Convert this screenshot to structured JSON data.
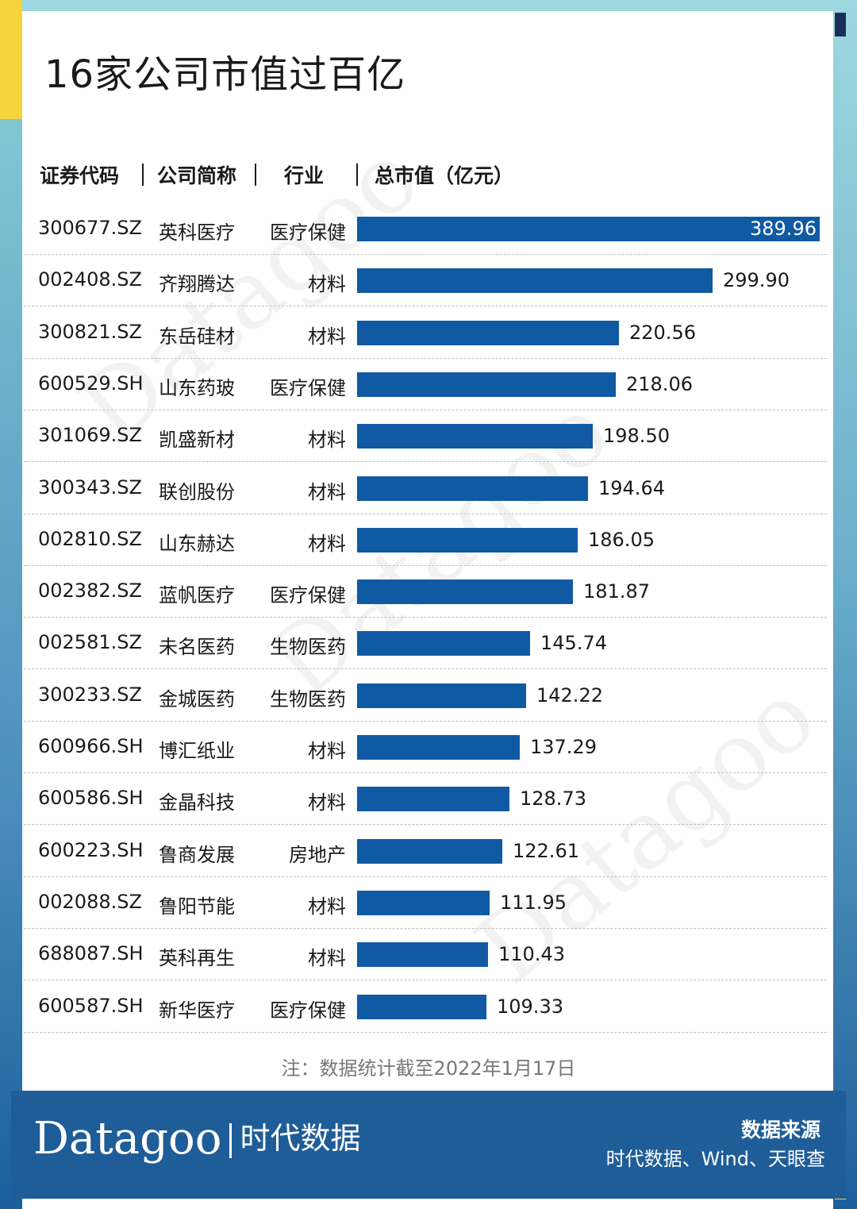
{
  "title": "16家公司市值过百亿",
  "headers": {
    "code": "证券代码",
    "name": "公司简称",
    "industry": "行业",
    "value": "总市值（亿元）"
  },
  "note": "注：数据统计截至2022年1月17日",
  "footer": {
    "logo_en": "Datagoo",
    "logo_cn": "时代数据",
    "source_title": "数据来源",
    "source_body": "时代数据、Wind、天眼查"
  },
  "colors": {
    "bar": "#0f5aa3",
    "footer": "#1f5d98",
    "accent_yellow": "#f5d33a",
    "accent_cyan": "#9ed8e0"
  },
  "chart_data": {
    "type": "bar",
    "orientation": "horizontal",
    "title": "16家公司市值过百亿",
    "xlabel": "总市值（亿元）",
    "ylabel": "",
    "grid": false,
    "rows": [
      {
        "code": "300677.SZ",
        "name": "英科医疗",
        "industry": "医疗保健",
        "value": 389.96
      },
      {
        "code": "002408.SZ",
        "name": "齐翔腾达",
        "industry": "材料",
        "value": 299.9
      },
      {
        "code": "300821.SZ",
        "name": "东岳硅材",
        "industry": "材料",
        "value": 220.56
      },
      {
        "code": "600529.SH",
        "name": "山东药玻",
        "industry": "医疗保健",
        "value": 218.06
      },
      {
        "code": "301069.SZ",
        "name": "凯盛新材",
        "industry": "材料",
        "value": 198.5
      },
      {
        "code": "300343.SZ",
        "name": "联创股份",
        "industry": "材料",
        "value": 194.64
      },
      {
        "code": "002810.SZ",
        "name": "山东赫达",
        "industry": "材料",
        "value": 186.05
      },
      {
        "code": "002382.SZ",
        "name": "蓝帆医疗",
        "industry": "医疗保健",
        "value": 181.87
      },
      {
        "code": "002581.SZ",
        "name": "未名医药",
        "industry": "生物医药",
        "value": 145.74
      },
      {
        "code": "300233.SZ",
        "name": "金城医药",
        "industry": "生物医药",
        "value": 142.22
      },
      {
        "code": "600966.SH",
        "name": "博汇纸业",
        "industry": "材料",
        "value": 137.29
      },
      {
        "code": "600586.SH",
        "name": "金晶科技",
        "industry": "材料",
        "value": 128.73
      },
      {
        "code": "600223.SH",
        "name": "鲁商发展",
        "industry": "房地产",
        "value": 122.61
      },
      {
        "code": "002088.SZ",
        "name": "鲁阳节能",
        "industry": "材料",
        "value": 111.95
      },
      {
        "code": "688087.SH",
        "name": "英科再生",
        "industry": "材料",
        "value": 110.43
      },
      {
        "code": "600587.SH",
        "name": "新华医疗",
        "industry": "医疗保健",
        "value": 109.33
      }
    ]
  }
}
